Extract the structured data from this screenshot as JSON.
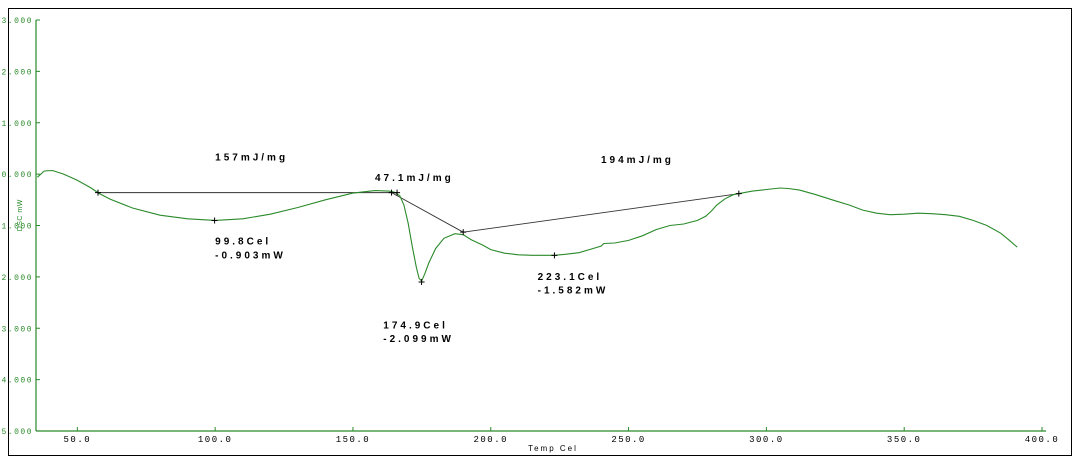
{
  "chart_data": {
    "type": "line",
    "title": "",
    "xlabel": "Temp Cel",
    "ylabel": "DSC mW",
    "xlim": [
      35,
      400
    ],
    "ylim": [
      -5,
      3
    ],
    "x_ticks": [
      50,
      100,
      150,
      200,
      250,
      300,
      350,
      400
    ],
    "x_tick_labels": [
      "50.0",
      "100.0",
      "150.0",
      "200.0",
      "250.0",
      "300.0",
      "350.0",
      "400.0"
    ],
    "y_ticks": [
      3,
      2,
      1,
      0,
      -1,
      -2,
      -3,
      -4,
      -5
    ],
    "y_tick_labels": [
      "3.000",
      "2.000",
      "1.000",
      "0.000",
      "-1.000",
      "-2.000",
      "-3.000",
      "-4.000",
      "-5.000"
    ],
    "colors": {
      "curve": "#2a8a2a",
      "axis": "#2a8a2a",
      "baseline": "#333333",
      "text": "#000000"
    },
    "series": [
      {
        "x": [
          35.5,
          38,
          41,
          45,
          50,
          55,
          58,
          62,
          70,
          80,
          90,
          100,
          110,
          120,
          130,
          140,
          150,
          158,
          163,
          165,
          167,
          168.5,
          170,
          171.5,
          173,
          174,
          174.9,
          176,
          177.5,
          180,
          183,
          187,
          190,
          193,
          197,
          200,
          205,
          210,
          215,
          220,
          223.1,
          227,
          232,
          237,
          240,
          241,
          245,
          250,
          255,
          260,
          265,
          270,
          275,
          278,
          280,
          282,
          285,
          288,
          290,
          295,
          300,
          305,
          308,
          312,
          318,
          325,
          330,
          335,
          340,
          345,
          350,
          355,
          360,
          365,
          370,
          375,
          380,
          385,
          388,
          391
        ],
        "y": [
          -0.06,
          0.06,
          0.07,
          0.0,
          -0.12,
          -0.27,
          -0.38,
          -0.49,
          -0.66,
          -0.8,
          -0.87,
          -0.9,
          -0.87,
          -0.78,
          -0.65,
          -0.5,
          -0.37,
          -0.32,
          -0.33,
          -0.35,
          -0.42,
          -0.6,
          -0.95,
          -1.4,
          -1.82,
          -2.03,
          -2.08,
          -1.95,
          -1.73,
          -1.45,
          -1.25,
          -1.16,
          -1.18,
          -1.28,
          -1.38,
          -1.47,
          -1.54,
          -1.57,
          -1.58,
          -1.58,
          -1.58,
          -1.56,
          -1.53,
          -1.45,
          -1.4,
          -1.35,
          -1.34,
          -1.29,
          -1.2,
          -1.08,
          -1.0,
          -0.97,
          -0.9,
          -0.82,
          -0.72,
          -0.6,
          -0.48,
          -0.4,
          -0.38,
          -0.33,
          -0.3,
          -0.27,
          -0.28,
          -0.31,
          -0.4,
          -0.52,
          -0.6,
          -0.7,
          -0.76,
          -0.79,
          -0.78,
          -0.76,
          -0.77,
          -0.79,
          -0.82,
          -0.9,
          -1.0,
          -1.15,
          -1.28,
          -1.42
        ]
      }
    ],
    "baselines": [
      {
        "x": [
          57.5,
          166
        ],
        "y": [
          -0.36,
          -0.36
        ]
      },
      {
        "x": [
          164,
          190
        ],
        "y": [
          -0.36,
          -1.13
        ]
      },
      {
        "x": [
          190,
          290
        ],
        "y": [
          -1.13,
          -0.38
        ]
      }
    ],
    "markers": [
      {
        "x": 57.5,
        "y": -0.36
      },
      {
        "x": 99.8,
        "y": -0.903
      },
      {
        "x": 164,
        "y": -0.36
      },
      {
        "x": 166,
        "y": -0.36
      },
      {
        "x": 174.9,
        "y": -2.099
      },
      {
        "x": 190,
        "y": -1.13
      },
      {
        "x": 223.1,
        "y": -1.582
      },
      {
        "x": 290,
        "y": -0.38
      }
    ],
    "annotations": [
      {
        "text": "157mJ/mg",
        "x": 100,
        "y": 0.27
      },
      {
        "text": "47.1mJ/mg",
        "x": 158,
        "y": -0.13
      },
      {
        "text": "194mJ/mg",
        "x": 240,
        "y": 0.22
      },
      {
        "text": "99.8Cel",
        "x": 100,
        "y": -1.37
      },
      {
        "text": "-0.903mW",
        "x": 100,
        "y": -1.64
      },
      {
        "text": "174.9Cel",
        "x": 161,
        "y": -3.0
      },
      {
        "text": "-2.099mW",
        "x": 161,
        "y": -3.27
      },
      {
        "text": "223.1Cel",
        "x": 217,
        "y": -2.06
      },
      {
        "text": "-1.582mW",
        "x": 217,
        "y": -2.32
      }
    ]
  }
}
